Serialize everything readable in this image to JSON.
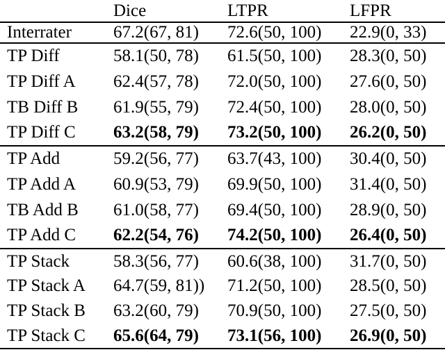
{
  "colors": {
    "background": "#ffffff",
    "text": "#000000",
    "rule": "#000000"
  },
  "table": {
    "header": {
      "label_col": "",
      "dice": "Dice",
      "ltpr": "LTPR",
      "lfpr": "LFPR"
    },
    "sections": [
      {
        "name": "interrater",
        "rows": [
          {
            "label": "Interrater",
            "dice": "67.2(67, 81)",
            "ltpr": "72.6(50, 100)",
            "lfpr": "22.9(0, 33)",
            "bold": false
          }
        ]
      },
      {
        "name": "diff",
        "rows": [
          {
            "label": "TP Diff",
            "dice": "58.1(50, 78)",
            "ltpr": "61.5(50, 100)",
            "lfpr": "28.3(0, 50)",
            "bold": false
          },
          {
            "label": "TP Diff A",
            "dice": "62.4(57, 78)",
            "ltpr": "72.0(50, 100)",
            "lfpr": "27.6(0, 50)",
            "bold": false
          },
          {
            "label": "TB Diff B",
            "dice": "61.9(55, 79)",
            "ltpr": "72.4(50, 100)",
            "lfpr": "28.0(0, 50)",
            "bold": false
          },
          {
            "label": "TP Diff C",
            "dice": "63.2(58, 79)",
            "ltpr": "73.2(50, 100)",
            "lfpr": "26.2(0, 50)",
            "bold": true
          }
        ]
      },
      {
        "name": "add",
        "rows": [
          {
            "label": "TP Add",
            "dice": "59.2(56, 77)",
            "ltpr": "63.7(43, 100)",
            "lfpr": "30.4(0, 50)",
            "bold": false
          },
          {
            "label": "TP Add A",
            "dice": "60.9(53, 79)",
            "ltpr": "69.9(50, 100)",
            "lfpr": "31.4(0, 50)",
            "bold": false
          },
          {
            "label": "TB Add B",
            "dice": "61.0(58, 77)",
            "ltpr": "69.4(50, 100)",
            "lfpr": "28.9(0, 50)",
            "bold": false
          },
          {
            "label": "TP Add C",
            "dice": "62.2(54, 76)",
            "ltpr": "74.2(50, 100)",
            "lfpr": "26.4(0, 50)",
            "bold": true
          }
        ]
      },
      {
        "name": "stack",
        "rows": [
          {
            "label": "TP Stack",
            "dice": "58.3(56, 77)",
            "ltpr": "60.6(38, 100)",
            "lfpr": "31.7(0, 50)",
            "bold": false
          },
          {
            "label": "TP Stack A",
            "dice": "64.7(59, 81))",
            "ltpr": "71.2(50, 100)",
            "lfpr": "28.5(0, 50)",
            "bold": false
          },
          {
            "label": "TP Stack B",
            "dice": "63.2(60, 79)",
            "ltpr": "70.9(50, 100)",
            "lfpr": "27.5(0, 50)",
            "bold": false
          },
          {
            "label": "TP Stack C",
            "dice": "65.6(64, 79)",
            "ltpr": "73.1(56, 100)",
            "lfpr": "26.9(0, 50)",
            "bold": true
          }
        ]
      }
    ]
  }
}
